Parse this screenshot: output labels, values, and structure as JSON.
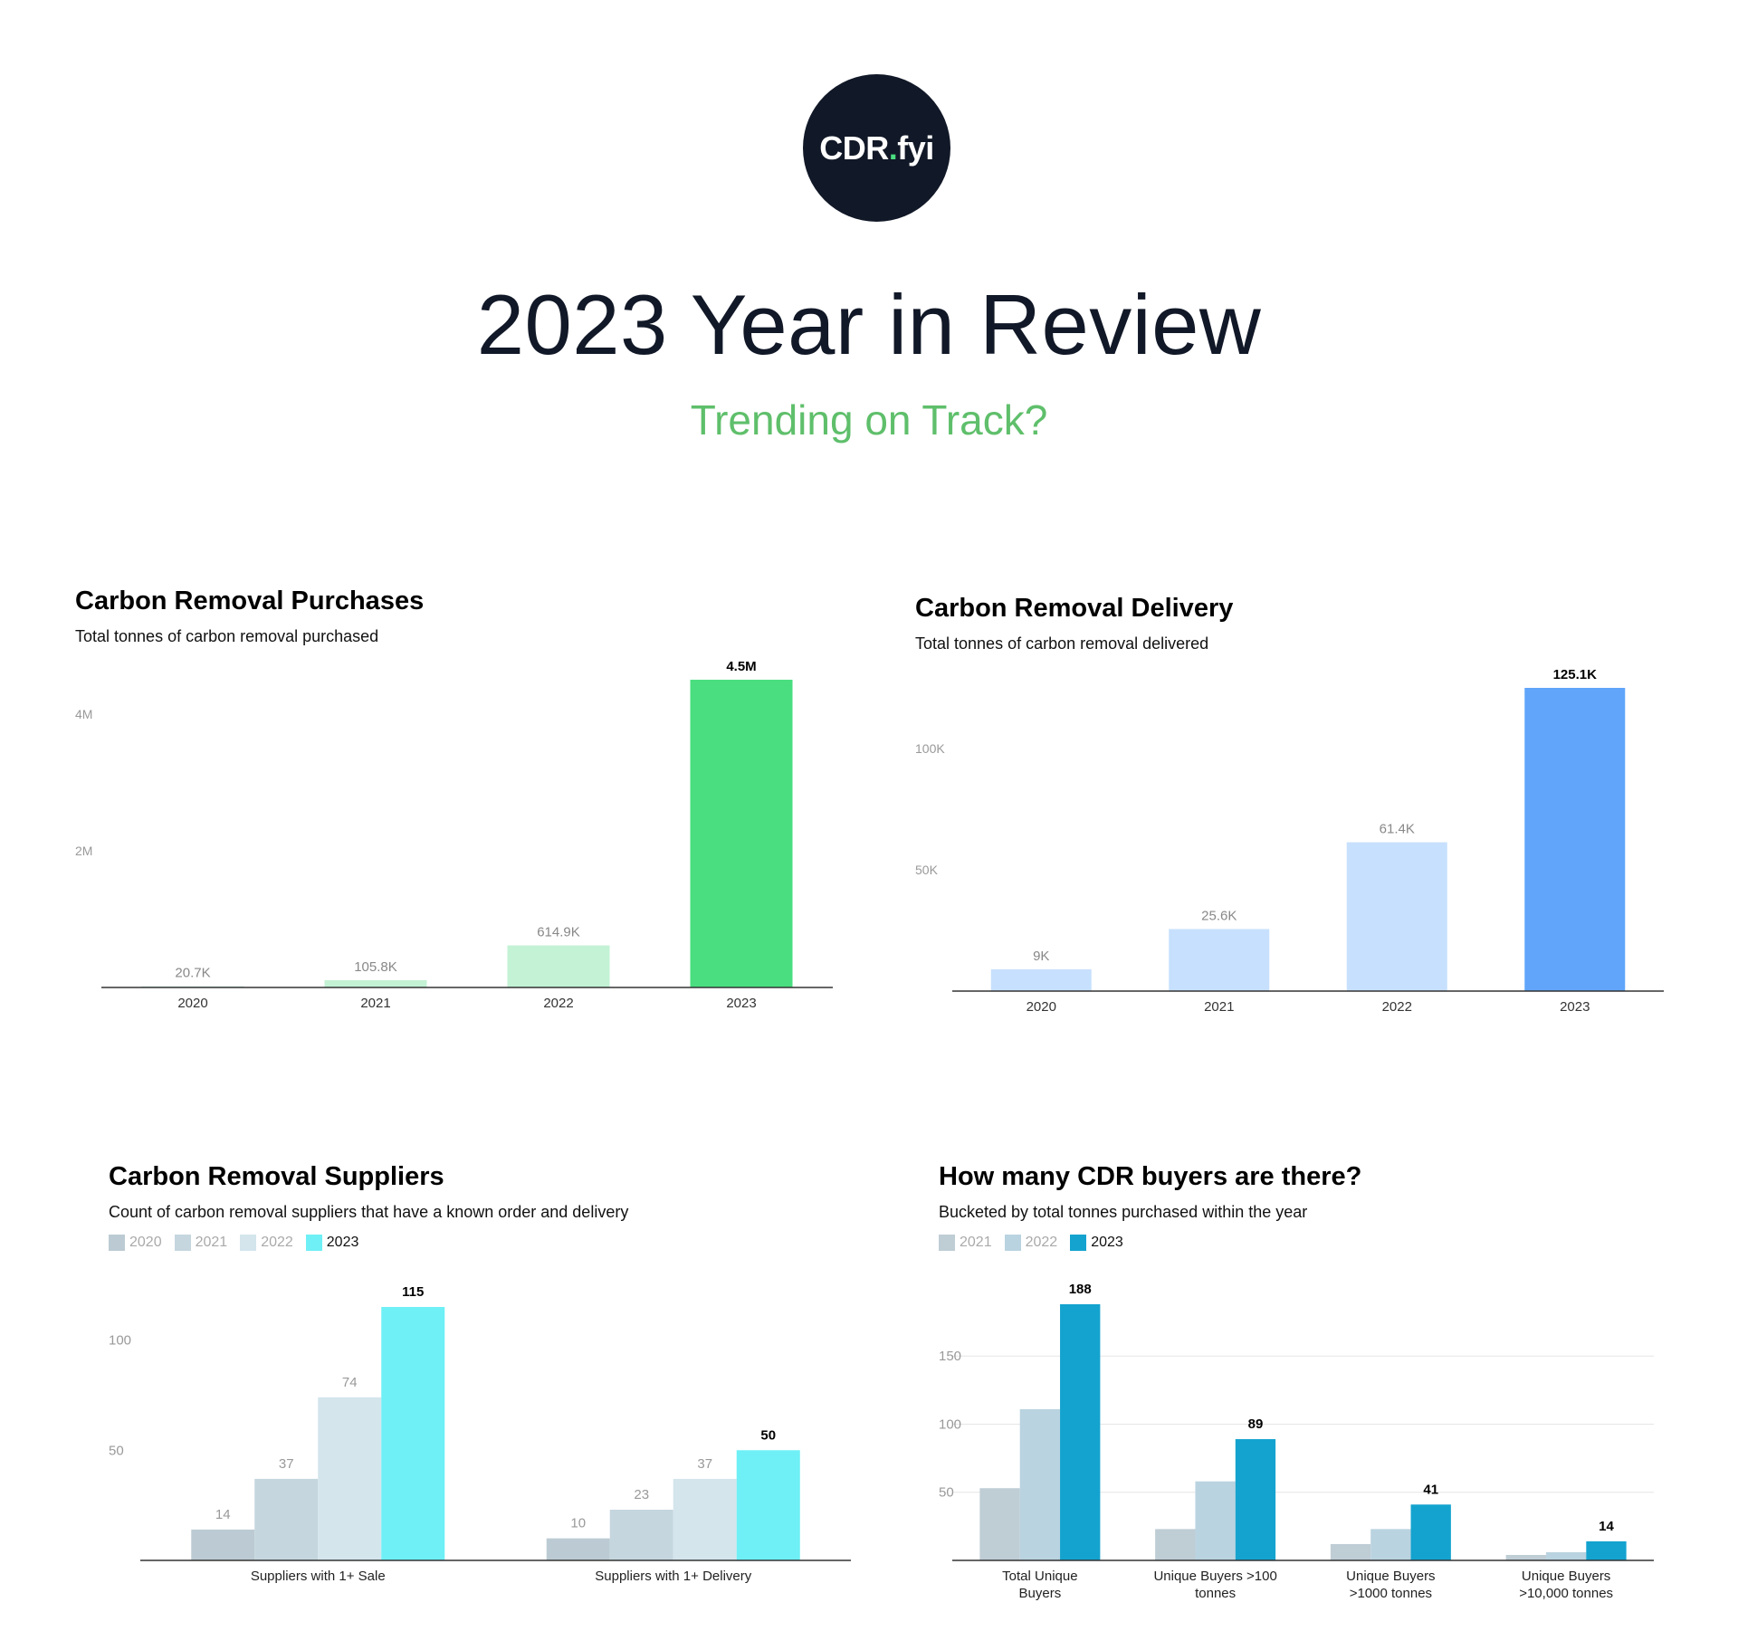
{
  "header": {
    "logo": {
      "text_main": "CDR",
      "text_dot": ".",
      "text_suffix": "fyi"
    },
    "title": "2023 Year in Review",
    "subtitle": "Trending on Track?"
  },
  "colors": {
    "text_dark": "#111827",
    "subtitle_green": "#5fbf6b",
    "logo_dot": "#4ade80"
  },
  "chart_data": [
    {
      "id": "purchases",
      "type": "bar",
      "title": "Carbon Removal Purchases",
      "subtitle": "Total tonnes of carbon removal purchased",
      "categories": [
        "2020",
        "2021",
        "2022",
        "2023"
      ],
      "values": [
        20700,
        105800,
        614900,
        4500000
      ],
      "value_labels": [
        "20.7K",
        "105.8K",
        "614.9K",
        "4.5M"
      ],
      "ylim": [
        0,
        4500000
      ],
      "y_ticks": [
        2000000,
        4000000
      ],
      "y_tick_labels": [
        "2M",
        "4M"
      ],
      "colors": [
        "#d9f3e3",
        "#c3f2d4",
        "#c3f2d4",
        "#4ade80"
      ],
      "highlight_index": 3,
      "grid": false
    },
    {
      "id": "delivery",
      "type": "bar",
      "title": "Carbon Removal Delivery",
      "subtitle": "Total tonnes of carbon removal delivered",
      "categories": [
        "2020",
        "2021",
        "2022",
        "2023"
      ],
      "values": [
        9000,
        25600,
        61400,
        125100
      ],
      "value_labels": [
        "9K",
        "25.6K",
        "61.4K",
        "125.1K"
      ],
      "ylim": [
        0,
        125100
      ],
      "y_ticks": [
        50000,
        100000
      ],
      "y_tick_labels": [
        "50K",
        "100K"
      ],
      "colors": [
        "#c7e0fd",
        "#c7e0fd",
        "#c7e0fd",
        "#60a5fa"
      ],
      "highlight_index": 3,
      "grid": false
    },
    {
      "id": "suppliers",
      "type": "bar",
      "title": "Carbon Removal Suppliers",
      "subtitle": "Count of carbon removal suppliers that have a known order and delivery",
      "categories": [
        "Suppliers with 1+ Sale",
        "Suppliers with 1+ Delivery"
      ],
      "series": [
        {
          "name": "2020",
          "values": [
            14,
            10
          ],
          "color": "#bccbd3"
        },
        {
          "name": "2021",
          "values": [
            37,
            23
          ],
          "color": "#c5d6de"
        },
        {
          "name": "2022",
          "values": [
            74,
            37
          ],
          "color": "#d4e5ec"
        },
        {
          "name": "2023",
          "values": [
            115,
            50
          ],
          "color": "#6ef0f6"
        }
      ],
      "ylim": [
        0,
        115
      ],
      "y_ticks": [
        50,
        100
      ],
      "y_tick_labels": [
        "50",
        "100"
      ],
      "legend_position": "top-left",
      "grid": false
    },
    {
      "id": "buyers",
      "type": "bar",
      "title": "How many CDR buyers are there?",
      "subtitle": "Bucketed by total tonnes purchased within the year",
      "categories": [
        "Total Unique Buyers",
        "Unique Buyers >100 tonnes",
        "Unique Buyers >1000 tonnes",
        "Unique Buyers >10,000 tonnes"
      ],
      "series": [
        {
          "name": "2021",
          "values": [
            53,
            23,
            12,
            4
          ],
          "color": "#bfcdd5"
        },
        {
          "name": "2022",
          "values": [
            111,
            58,
            23,
            6
          ],
          "color": "#bad3e0"
        },
        {
          "name": "2023",
          "values": [
            188,
            89,
            41,
            14
          ],
          "color": "#14a3cf"
        }
      ],
      "ylim": [
        0,
        188
      ],
      "y_ticks": [
        50,
        100,
        150
      ],
      "y_tick_labels": [
        "50",
        "100",
        "150"
      ],
      "legend_position": "top-left",
      "grid": true
    }
  ]
}
